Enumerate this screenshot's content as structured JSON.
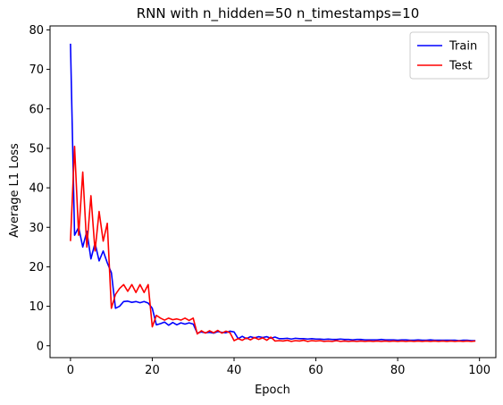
{
  "chart_data": {
    "type": "line",
    "title": "RNN with n_hidden=50 n_timestamps=10",
    "xlabel": "Epoch",
    "ylabel": "Average L1 Loss",
    "xlim": [
      -5,
      104
    ],
    "ylim": [
      -3,
      81
    ],
    "x_ticks": [
      0,
      20,
      40,
      60,
      80,
      100
    ],
    "y_ticks": [
      0,
      10,
      20,
      30,
      40,
      50,
      60,
      70,
      80
    ],
    "grid": false,
    "legend_position": "top-right",
    "series": [
      {
        "name": "Train",
        "color": "#0000ff",
        "values": [
          76.5,
          28,
          30,
          25,
          29,
          22,
          26,
          21.5,
          24,
          21,
          18.5,
          9.5,
          10,
          11.2,
          11.3,
          11,
          11.2,
          10.9,
          11.2,
          10.8,
          9.5,
          5.3,
          5.6,
          6,
          5.2,
          5.9,
          5.3,
          5.8,
          5.5,
          5.8,
          5.5,
          3.2,
          3.5,
          3.3,
          3.4,
          3.2,
          3.6,
          3.4,
          3.3,
          3.7,
          3.5,
          1.8,
          2.4,
          1.8,
          2.3,
          2,
          2.3,
          2.1,
          2.3,
          1.9,
          2.2,
          1.8,
          1.8,
          1.9,
          1.7,
          1.9,
          1.8,
          1.8,
          1.7,
          1.8,
          1.7,
          1.7,
          1.6,
          1.7,
          1.6,
          1.6,
          1.7,
          1.6,
          1.6,
          1.5,
          1.6,
          1.6,
          1.5,
          1.5,
          1.5,
          1.5,
          1.6,
          1.5,
          1.5,
          1.5,
          1.4,
          1.5,
          1.5,
          1.4,
          1.4,
          1.5,
          1.4,
          1.4,
          1.5,
          1.4,
          1.4,
          1.4,
          1.4,
          1.4,
          1.4,
          1.3,
          1.4,
          1.4,
          1.3,
          1.3
        ]
      },
      {
        "name": "Test",
        "color": "#ff0000",
        "values": [
          26.5,
          50.5,
          28,
          44,
          25,
          38,
          24,
          34,
          26.5,
          31,
          9.5,
          13,
          14.5,
          15.5,
          13.8,
          15.5,
          13.5,
          15.5,
          13.5,
          15.5,
          4.8,
          7.7,
          7,
          6.5,
          7,
          6.6,
          6.8,
          6.5,
          7,
          6.4,
          7,
          3,
          3.8,
          3.2,
          3.8,
          3.3,
          3.9,
          3.2,
          3.7,
          3.3,
          1.3,
          1.8,
          1.4,
          2,
          1.5,
          2.1,
          1.6,
          2,
          1.4,
          2.2,
          1.2,
          1.3,
          1.2,
          1.4,
          1.1,
          1.3,
          1.2,
          1.4,
          1.1,
          1.3,
          1.2,
          1.3,
          1.1,
          1.2,
          1.1,
          1.3,
          1.1,
          1.2,
          1.1,
          1.2,
          1.1,
          1.2,
          1.1,
          1.2,
          1.1,
          1.2,
          1.1,
          1.2,
          1.1,
          1.2,
          1.1,
          1.2,
          1.1,
          1.2,
          1.1,
          1.2,
          1.1,
          1.2,
          1.1,
          1.2,
          1.1,
          1.2,
          1.1,
          1.2,
          1.1,
          1.2,
          1.1,
          1.2,
          1.1,
          1.2
        ]
      }
    ]
  }
}
